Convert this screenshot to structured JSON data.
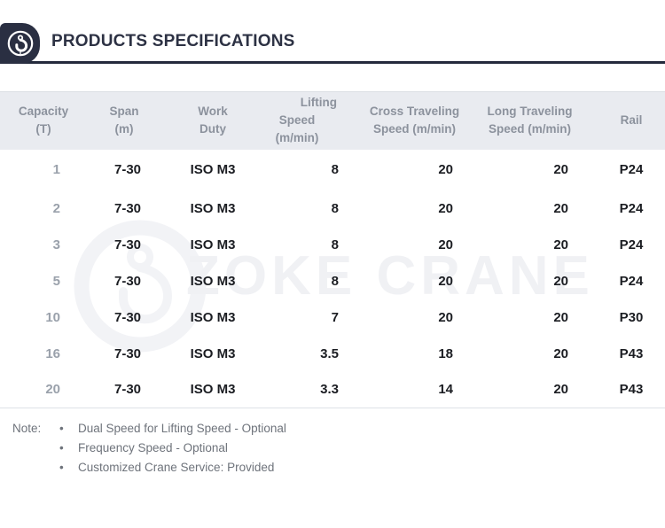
{
  "header": {
    "title": "PRODUCTS SPECIFICATIONS"
  },
  "watermark": {
    "text": "ZOKE CRANE"
  },
  "table": {
    "columns": [
      {
        "line1": "Capacity",
        "line2": "(T)"
      },
      {
        "line1": "Span",
        "line2": "(m)"
      },
      {
        "line1": "Work",
        "line2": "Duty"
      },
      {
        "line1": "Lifting",
        "line2": "Speed (m/min)"
      },
      {
        "line1": "Cross Traveling",
        "line2": "Speed (m/min)"
      },
      {
        "line1": "Long Traveling",
        "line2": "Speed (m/min)"
      },
      {
        "line1": "Rail",
        "line2": ""
      }
    ],
    "rows": [
      [
        "1",
        "7-30",
        "ISO M3",
        "8",
        "20",
        "20",
        "P24"
      ],
      [
        "2",
        "7-30",
        "ISO M3",
        "8",
        "20",
        "20",
        "P24"
      ],
      [
        "3",
        "7-30",
        "ISO M3",
        "8",
        "20",
        "20",
        "P24"
      ],
      [
        "5",
        "7-30",
        "ISO M3",
        "8",
        "20",
        "20",
        "P24"
      ],
      [
        "10",
        "7-30",
        "ISO M3",
        "7",
        "20",
        "20",
        "P30"
      ],
      [
        "16",
        "7-30",
        "ISO M3",
        "3.5",
        "18",
        "20",
        "P43"
      ],
      [
        "20",
        "7-30",
        "ISO M3",
        "3.3",
        "14",
        "20",
        "P43"
      ]
    ]
  },
  "notes": {
    "label": "Note:",
    "bullet_char": "•",
    "items": [
      "Dual Speed for Lifting Speed - Optional",
      "Frequency Speed - Optional",
      "Customized Crane Service: Provided"
    ]
  },
  "colors": {
    "accent_dark": "#2a2f42",
    "divider": "#242a3c",
    "table_header_bg": "#e9ebf0",
    "table_header_text": "#8c929d",
    "cell_text": "#1b1d22",
    "capacity_text": "#9aa1ab",
    "note_text": "#6e737b",
    "watermark": "#f0f1f4"
  }
}
